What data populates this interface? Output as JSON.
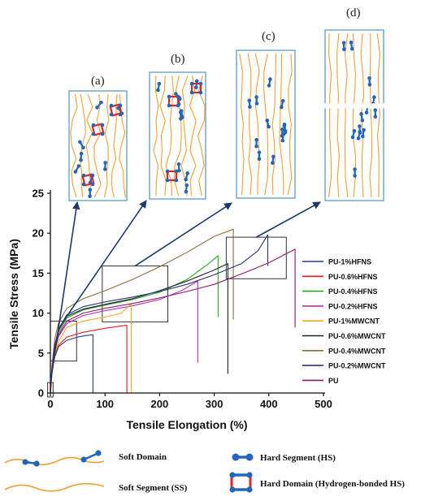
{
  "panels": [
    {
      "label": "(a)"
    },
    {
      "label": "(b)"
    },
    {
      "label": "(c)"
    },
    {
      "label": "(d)"
    }
  ],
  "colors": {
    "soft_segment": "#f0a030",
    "hard_segment": "#2266bb",
    "hydrogen_bond": "#e8202a",
    "panel_border": "#6aa3c8",
    "arrow": "#1a3a6a"
  },
  "chart_data": {
    "type": "line",
    "xlabel": "Tensile Elongation (%)",
    "ylabel": "Tensile Stress (MPa)",
    "xlim": [
      0,
      500
    ],
    "ylim": [
      0,
      25
    ],
    "xticks": [
      0,
      100,
      200,
      300,
      400,
      500
    ],
    "yticks": [
      0,
      5,
      10,
      15,
      20,
      25
    ],
    "legend_position": "right",
    "series": [
      {
        "name": "PU-1%HFNS",
        "color": "#2b3a8f",
        "points": [
          [
            0,
            0
          ],
          [
            3,
            2.5
          ],
          [
            8,
            4.5
          ],
          [
            15,
            5.8
          ],
          [
            30,
            6.6
          ],
          [
            50,
            7.0
          ],
          [
            65,
            7.2
          ],
          [
            78,
            7.3
          ]
        ],
        "break_to": 0
      },
      {
        "name": "PU-0.6%HFNS",
        "color": "#e31a1c",
        "points": [
          [
            0,
            0
          ],
          [
            3,
            2.5
          ],
          [
            8,
            4.8
          ],
          [
            15,
            6.0
          ],
          [
            30,
            7.0
          ],
          [
            60,
            7.6
          ],
          [
            100,
            8.1
          ],
          [
            140,
            8.5
          ]
        ],
        "break_to": 0
      },
      {
        "name": "PU-0.4%HFNS",
        "color": "#22aa22",
        "points": [
          [
            0,
            0
          ],
          [
            3,
            3
          ],
          [
            8,
            5.8
          ],
          [
            15,
            7.6
          ],
          [
            30,
            9.4
          ],
          [
            60,
            10.4
          ],
          [
            100,
            11.0
          ],
          [
            150,
            11.7
          ],
          [
            200,
            12.6
          ],
          [
            250,
            14.2
          ],
          [
            290,
            16.2
          ],
          [
            307,
            17.2
          ]
        ],
        "break_to": 9.5
      },
      {
        "name": "PU-0.2%HFNS",
        "color": "#b030b0",
        "points": [
          [
            0,
            0
          ],
          [
            3,
            2.8
          ],
          [
            8,
            5.3
          ],
          [
            15,
            7.1
          ],
          [
            30,
            8.7
          ],
          [
            60,
            9.7
          ],
          [
            100,
            10.3
          ],
          [
            150,
            10.9
          ],
          [
            200,
            11.7
          ],
          [
            240,
            12.8
          ],
          [
            270,
            14.0
          ]
        ],
        "break_to": 3.8
      },
      {
        "name": "PU-1%MWCNT",
        "color": "#f5a623",
        "points": [
          [
            0,
            0
          ],
          [
            3,
            2.5
          ],
          [
            8,
            4.8
          ],
          [
            15,
            6.5
          ],
          [
            30,
            8.2
          ],
          [
            60,
            9.0
          ],
          [
            100,
            9.5
          ],
          [
            130,
            10.0
          ],
          [
            148,
            11.2
          ]
        ],
        "break_to": 0
      },
      {
        "name": "PU-0.6%MWCNT",
        "color": "#222222",
        "points": [
          [
            0,
            0
          ],
          [
            3,
            3
          ],
          [
            8,
            5.8
          ],
          [
            15,
            7.9
          ],
          [
            30,
            9.6
          ],
          [
            60,
            10.5
          ],
          [
            100,
            11.1
          ],
          [
            150,
            11.8
          ],
          [
            200,
            12.8
          ],
          [
            250,
            14.0
          ],
          [
            300,
            15.4
          ],
          [
            325,
            16.2
          ]
        ],
        "break_to": 2.4
      },
      {
        "name": "PU-0.4%MWCNT",
        "color": "#8c6d3f",
        "points": [
          [
            0,
            0
          ],
          [
            3,
            3.5
          ],
          [
            8,
            6.8
          ],
          [
            15,
            8.8
          ],
          [
            30,
            10.6
          ],
          [
            60,
            11.8
          ],
          [
            100,
            12.8
          ],
          [
            150,
            14.2
          ],
          [
            200,
            15.8
          ],
          [
            250,
            17.6
          ],
          [
            300,
            19.6
          ],
          [
            335,
            20.5
          ]
        ],
        "break_to": 9.2
      },
      {
        "name": "PU-0.2%MWCNT",
        "color": "#2e2e7a",
        "points": [
          [
            0,
            0
          ],
          [
            3,
            3
          ],
          [
            8,
            6
          ],
          [
            15,
            8
          ],
          [
            30,
            9.8
          ],
          [
            60,
            10.8
          ],
          [
            100,
            11.4
          ],
          [
            150,
            12.0
          ],
          [
            200,
            12.7
          ],
          [
            250,
            13.6
          ],
          [
            300,
            14.8
          ],
          [
            350,
            16.2
          ],
          [
            380,
            17.8
          ],
          [
            398,
            19.8
          ]
        ],
        "break_to": 15.9
      },
      {
        "name": "PU",
        "color": "#8b1a6b",
        "points": [
          [
            0,
            0
          ],
          [
            3,
            2.8
          ],
          [
            8,
            5.4
          ],
          [
            15,
            7.3
          ],
          [
            30,
            9.0
          ],
          [
            60,
            10.0
          ],
          [
            100,
            10.6
          ],
          [
            150,
            11.2
          ],
          [
            200,
            11.9
          ],
          [
            250,
            12.7
          ],
          [
            300,
            13.6
          ],
          [
            350,
            14.9
          ],
          [
            400,
            16.3
          ],
          [
            448,
            18.0
          ]
        ],
        "break_to": 8.2
      }
    ],
    "zoom_boxes": [
      {
        "panel": "a",
        "x0": -5,
        "x1": 5,
        "y0": -0.5,
        "y1": 1.3
      },
      {
        "panel": "b",
        "x0": 0,
        "x1": 48,
        "y0": 4.0,
        "y1": 9.0
      },
      {
        "panel": "c",
        "x0": 95,
        "x1": 215,
        "y0": 8.9,
        "y1": 15.9
      },
      {
        "panel": "d",
        "x0": 322,
        "x1": 432,
        "y0": 14.3,
        "y1": 19.5
      }
    ]
  },
  "key": {
    "soft_domain": "Soft Domain",
    "soft_segment": "Soft Segment (SS)",
    "hard_segment": "Hard Segment (HS)",
    "hard_domain": "Hard Domain (Hydrogen-bonded HS)"
  }
}
